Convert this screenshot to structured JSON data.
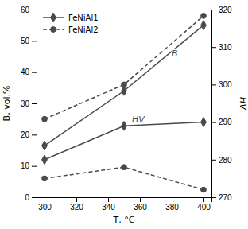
{
  "chart_data": {
    "type": "line",
    "x": [
      300,
      350,
      400
    ],
    "xlabel": "T, °C",
    "ylabel": "B, vol.%",
    "y2label": "HV",
    "xlim": [
      295,
      405
    ],
    "xticks": [
      300,
      320,
      340,
      360,
      380,
      400
    ],
    "ylim": [
      0,
      60
    ],
    "yticks": [
      0,
      10,
      20,
      30,
      40,
      50,
      60
    ],
    "y2lim": [
      270,
      320
    ],
    "y2ticks": [
      270,
      280,
      290,
      300,
      310,
      320
    ],
    "color": "#4a4a4a",
    "legend": "upper left",
    "series": [
      {
        "name": "FeNiAl1",
        "values": [
          16.5,
          34,
          55
        ],
        "marker": "diamond",
        "line_style": "solid"
      },
      {
        "name": "FeNiAl2",
        "values": [
          25,
          36,
          58
        ],
        "marker": "circle",
        "line_style": "dashed"
      },
      {
        "name": "FeNiAl1",
        "values": [
          280,
          289,
          290
        ],
        "marker": "diamond",
        "line_style": "solid",
        "axis": "y2"
      },
      {
        "name": "FeNiAl2",
        "values": [
          275,
          278,
          272
        ],
        "marker": "circle",
        "line_style": "dashed",
        "axis": "y2"
      }
    ],
    "annotations": [
      {
        "text": "B",
        "x": 380,
        "y": 45
      },
      {
        "text": "HV",
        "x": 355,
        "y": 24
      }
    ]
  }
}
